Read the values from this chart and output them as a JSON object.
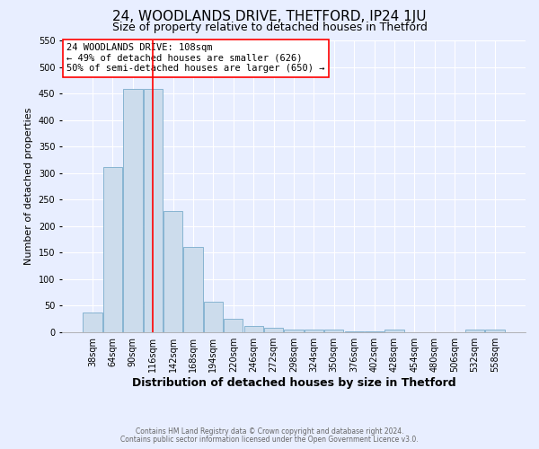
{
  "title": "24, WOODLANDS DRIVE, THETFORD, IP24 1JU",
  "subtitle": "Size of property relative to detached houses in Thetford",
  "xlabel": "Distribution of detached houses by size in Thetford",
  "ylabel": "Number of detached properties",
  "footnote1": "Contains HM Land Registry data © Crown copyright and database right 2024.",
  "footnote2": "Contains public sector information licensed under the Open Government Licence v3.0.",
  "categories": [
    "38sqm",
    "64sqm",
    "90sqm",
    "116sqm",
    "142sqm",
    "168sqm",
    "194sqm",
    "220sqm",
    "246sqm",
    "272sqm",
    "298sqm",
    "324sqm",
    "350sqm",
    "376sqm",
    "402sqm",
    "428sqm",
    "454sqm",
    "480sqm",
    "506sqm",
    "532sqm",
    "558sqm"
  ],
  "values": [
    38,
    312,
    458,
    458,
    228,
    160,
    57,
    25,
    12,
    9,
    5,
    5,
    5,
    2,
    2,
    5,
    0,
    0,
    0,
    5,
    5
  ],
  "bar_color": "#ccdcec",
  "bar_edge_color": "#7aaccc",
  "vline_color": "red",
  "vline_x": 2.97,
  "annotation_text": "24 WOODLANDS DRIVE: 108sqm\n← 49% of detached houses are smaller (626)\n50% of semi-detached houses are larger (650) →",
  "annotation_box_facecolor": "white",
  "annotation_box_edgecolor": "red",
  "ylim": [
    0,
    550
  ],
  "yticks": [
    0,
    50,
    100,
    150,
    200,
    250,
    300,
    350,
    400,
    450,
    500,
    550
  ],
  "background_color": "#e8eeff",
  "title_fontsize": 11,
  "subtitle_fontsize": 9,
  "ylabel_fontsize": 8,
  "xlabel_fontsize": 9,
  "tick_fontsize": 7,
  "annotation_fontsize": 7.5,
  "footnote_fontsize": 5.5
}
